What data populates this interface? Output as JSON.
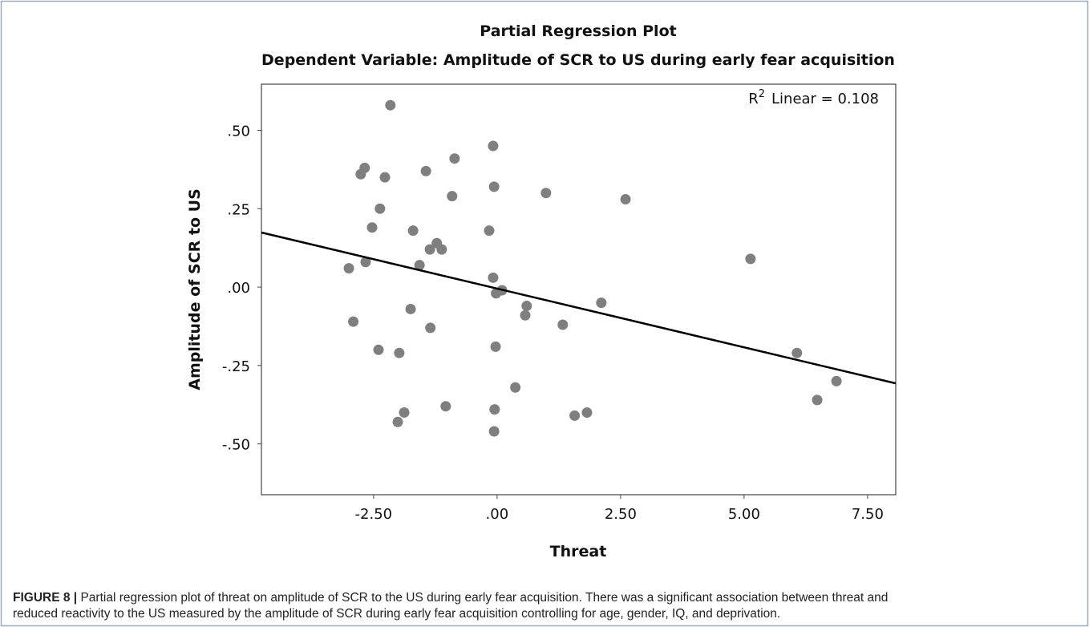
{
  "chart_data": {
    "type": "scatter",
    "title": "Partial Regression Plot",
    "subtitle": "Dependent Variable: Amplitude of SCR to US during early fear acquisition",
    "x_label": "Threat",
    "y_label": "Amplitude of SCR to US",
    "annotation": {
      "prefix": "R",
      "superscript": "2",
      "text": "Linear = 0.108"
    },
    "color": "#7f7f7f",
    "x": [
      -2.16,
      -0.08,
      -2.76,
      -2.68,
      -2.27,
      -1.44,
      -0.86,
      -0.06,
      -0.91,
      0.99,
      2.6,
      -2.37,
      -2.53,
      -1.7,
      -0.16,
      -1.22,
      -1.36,
      -1.12,
      -1.57,
      -2.66,
      -3.0,
      5.13,
      -0.08,
      0.1,
      -0.02,
      0.6,
      2.11,
      -1.75,
      0.57,
      -2.91,
      -1.35,
      1.33,
      -2.4,
      -1.98,
      -0.03,
      6.07,
      0.37,
      6.87,
      6.48,
      -1.04,
      -0.05,
      -1.88,
      -2.01,
      1.57,
      1.82,
      -0.06
    ],
    "values": [
      0.58,
      0.45,
      0.36,
      0.38,
      0.35,
      0.37,
      0.41,
      0.32,
      0.29,
      0.3,
      0.28,
      0.25,
      0.19,
      0.18,
      0.18,
      0.14,
      0.12,
      0.12,
      0.07,
      0.08,
      0.06,
      0.09,
      0.03,
      -0.01,
      -0.02,
      -0.06,
      -0.05,
      -0.07,
      -0.09,
      -0.11,
      -0.13,
      -0.12,
      -0.2,
      -0.21,
      -0.19,
      -0.21,
      -0.32,
      -0.3,
      -0.36,
      -0.38,
      -0.39,
      -0.4,
      -0.43,
      -0.41,
      -0.4,
      -0.46
    ],
    "fit_line": {
      "x": [
        -4.77,
        8.07
      ],
      "values": [
        0.174,
        -0.307
      ],
      "color": "#000000"
    },
    "xlim": [
      -4.77,
      8.07
    ],
    "ylim": [
      -0.662,
      0.647
    ],
    "xticks": [
      {
        "value": -2.5,
        "label": "-2.50"
      },
      {
        "value": 0,
        "label": ".00"
      },
      {
        "value": 2.5,
        "label": "2.50"
      },
      {
        "value": 5,
        "label": "5.00"
      },
      {
        "value": 7.5,
        "label": "7.50"
      }
    ],
    "yticks": [
      {
        "value": 0.5,
        "label": ".50"
      },
      {
        "value": 0.25,
        "label": ".25"
      },
      {
        "value": 0,
        "label": ".00"
      },
      {
        "value": -0.25,
        "label": "-.25"
      },
      {
        "value": -0.5,
        "label": "-.50"
      }
    ],
    "grid": false
  },
  "caption": {
    "label": "FIGURE 8 |",
    "lines": [
      "Partial regression plot of threat on amplitude of SCR to the US during early fear acquisition. There was a significant association between threat and",
      "reduced reactivity to the US measured by the amplitude of SCR during early fear acquisition controlling for age, gender, IQ, and deprivation."
    ]
  }
}
